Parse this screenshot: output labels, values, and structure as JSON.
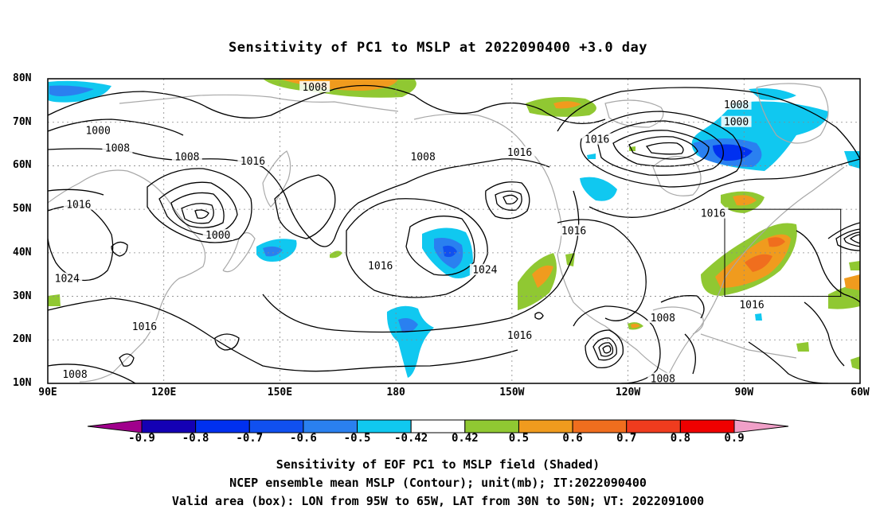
{
  "title": "Sensitivity of PC1 to MSLP at 2022090400 +3.0 day",
  "footer": {
    "line1": "Sensitivity of EOF PC1 to MSLP field (Shaded)",
    "line2": "NCEP ensemble mean MSLP (Contour); unit(mb); IT:2022090400",
    "line3": "Valid area (box): LON from 95W to 65W, LAT from 30N to 50N; VT: 2022091000"
  },
  "map": {
    "lon_range": [
      90,
      300
    ],
    "lat_range": [
      10,
      80
    ],
    "grid": "dotted",
    "xticks": [
      "90E",
      "120E",
      "150E",
      "180",
      "150W",
      "120W",
      "90W",
      "60W"
    ],
    "yticks": [
      "10N",
      "20N",
      "30N",
      "40N",
      "50N",
      "60N",
      "70N",
      "80N"
    ],
    "valid_box": {
      "lon_west": "95W",
      "lon_east": "65W",
      "lat_south": "30N",
      "lat_north": "50N"
    },
    "contour_labels": [
      {
        "text": "1008",
        "lon": 159,
        "lat": 78
      },
      {
        "text": "1000",
        "lon": 103,
        "lat": 68
      },
      {
        "text": "1008",
        "lon": 108,
        "lat": 64
      },
      {
        "text": "1008",
        "lon": 126,
        "lat": 62
      },
      {
        "text": "1016",
        "lon": 143,
        "lat": 61
      },
      {
        "text": "1016",
        "lon": 98,
        "lat": 51
      },
      {
        "text": "1000",
        "lon": 134,
        "lat": 44
      },
      {
        "text": "1024",
        "lon": 95,
        "lat": 34
      },
      {
        "text": "1016",
        "lon": 115,
        "lat": 23
      },
      {
        "text": "1008",
        "lon": 97,
        "lat": 12
      },
      {
        "text": "1008",
        "lon": 187,
        "lat": 62
      },
      {
        "text": "1016",
        "lon": 212,
        "lat": 63
      },
      {
        "text": "1016",
        "lon": 176,
        "lat": 37
      },
      {
        "text": "1024",
        "lon": 203,
        "lat": 36
      },
      {
        "text": "1016",
        "lon": 226,
        "lat": 45
      },
      {
        "text": "1016",
        "lon": 212,
        "lat": 21
      },
      {
        "text": "1016",
        "lon": 232,
        "lat": 66
      },
      {
        "text": "1008",
        "lon": 268,
        "lat": 74
      },
      {
        "text": "1000",
        "lon": 268,
        "lat": 70
      },
      {
        "text": "1016",
        "lon": 262,
        "lat": 49
      },
      {
        "text": "1008",
        "lon": 249,
        "lat": 25
      },
      {
        "text": "1008",
        "lon": 249,
        "lat": 11
      },
      {
        "text": "1016",
        "lon": 272,
        "lat": 28
      }
    ]
  },
  "colorbar": {
    "colors": [
      "#a0008c",
      "#1400b4",
      "#0030f0",
      "#1050f0",
      "#2a80f0",
      "#10c8f0",
      "#ffffff",
      "#90c832",
      "#f09b1e",
      "#f06e1e",
      "#f03c1e",
      "#f00000",
      "#f0a0c8"
    ],
    "labels": [
      "-0.9",
      "-0.8",
      "-0.7",
      "-0.6",
      "-0.5",
      "-0.42",
      "0.42",
      "0.5",
      "0.6",
      "0.7",
      "0.8",
      "0.9"
    ]
  }
}
